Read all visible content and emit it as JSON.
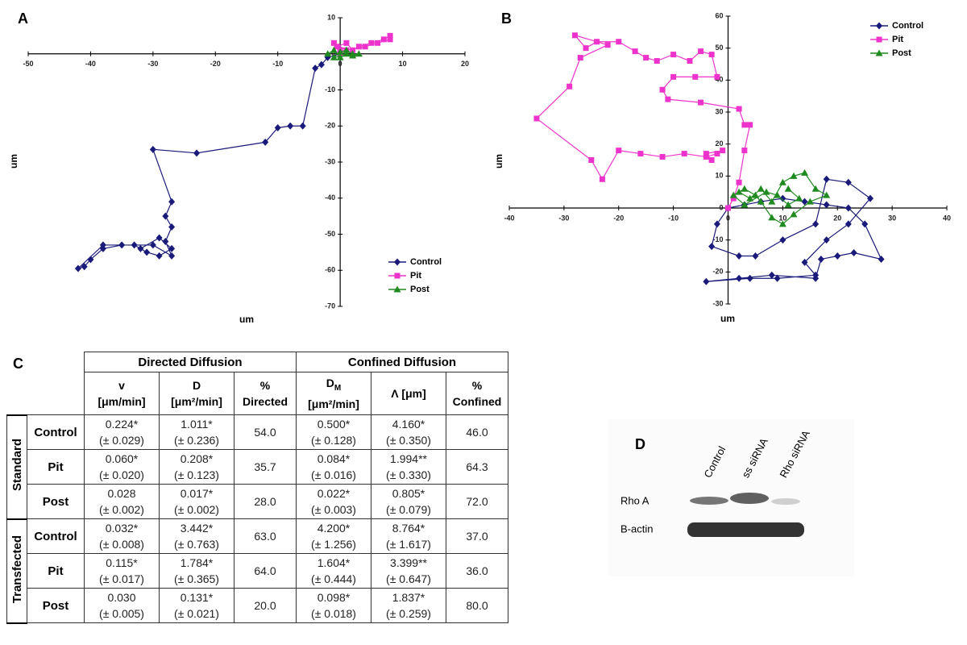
{
  "panels": [
    "A",
    "B",
    "C",
    "D"
  ],
  "chart_data": [
    {
      "type": "line",
      "xlabel": "um",
      "ylabel": "um",
      "legend": "lower right",
      "xlim": [
        -50,
        20
      ],
      "ylim": [
        -70,
        10
      ],
      "xticks": [
        -50,
        -40,
        -30,
        -20,
        -10,
        0,
        10,
        20
      ],
      "yticks": [
        -70,
        -60,
        -50,
        -40,
        -30,
        -20,
        -10,
        0,
        10
      ],
      "series": [
        {
          "name": "Control",
          "color": "#1a1a7a",
          "marker": "diamond",
          "x": [
            0,
            -2,
            -3,
            -4,
            -6,
            -8,
            -10,
            -12,
            -23,
            -30,
            -27,
            -28,
            -27,
            -28,
            -27,
            -30,
            -35,
            -38,
            -40,
            -41,
            -42,
            -38,
            -33,
            -31,
            -29,
            -27,
            -29,
            -32
          ],
          "y": [
            0,
            -1,
            -3,
            -4,
            -20,
            -20,
            -20.5,
            -24.5,
            -27.5,
            -26.5,
            -41,
            -45,
            -48,
            -52,
            -56,
            -53,
            -53,
            -54,
            -57,
            -59,
            -59.5,
            -53,
            -53,
            -55,
            -56,
            -54,
            -51,
            -54
          ]
        },
        {
          "name": "Pit",
          "color": "#ee33cc",
          "marker": "square",
          "x": [
            0,
            -0.5,
            1,
            2,
            3,
            5,
            7,
            8,
            8,
            6,
            4,
            1,
            -1,
            0
          ],
          "y": [
            0,
            2,
            3,
            1,
            2,
            3,
            4,
            5,
            4,
            3,
            2,
            1,
            3,
            1
          ]
        },
        {
          "name": "Post",
          "color": "#1f8a1f",
          "marker": "triangle",
          "x": [
            -2,
            -1,
            0,
            1,
            2,
            3,
            -1,
            0,
            1,
            2
          ],
          "y": [
            0,
            1,
            -1,
            0,
            -0.5,
            0,
            -1,
            0.5,
            1,
            0
          ]
        }
      ]
    },
    {
      "type": "line",
      "xlabel": "um",
      "ylabel": "um",
      "legend": "upper right",
      "xlim": [
        -40,
        40
      ],
      "ylim": [
        -30,
        60
      ],
      "xticks": [
        -40,
        -30,
        -20,
        -10,
        0,
        10,
        20,
        30,
        40
      ],
      "yticks": [
        -30,
        -20,
        -10,
        0,
        10,
        20,
        30,
        40,
        50,
        60
      ],
      "series": [
        {
          "name": "Control",
          "color": "#1a1a7a",
          "marker": "diamond",
          "x": [
            0,
            -2,
            -3,
            2,
            5,
            10,
            16,
            18,
            22,
            26,
            22,
            18,
            14,
            16,
            9,
            4,
            -4,
            2,
            8,
            16,
            17,
            20,
            23,
            28,
            25,
            22,
            18,
            14,
            10,
            6,
            3,
            0
          ],
          "y": [
            0,
            -5,
            -12,
            -15,
            -15,
            -10,
            -5,
            9,
            8,
            3,
            -5,
            -10,
            -17,
            -21,
            -22,
            -22,
            -23,
            -22,
            -21,
            -22,
            -16,
            -15,
            -14,
            -16,
            -5,
            0,
            1,
            2,
            3,
            2,
            1,
            0
          ]
        },
        {
          "name": "Pit",
          "color": "#ee33cc",
          "marker": "square",
          "x": [
            0,
            1,
            2,
            3,
            4,
            3,
            2,
            -5,
            -11,
            -12,
            -10,
            -6,
            -2,
            -3,
            -5,
            -7,
            -10,
            -13,
            -15,
            -17,
            -20,
            -24,
            -26,
            -28,
            -22,
            -27,
            -29,
            -35,
            -25,
            -23,
            -20,
            -16,
            -12,
            -8,
            -4,
            -2,
            -1,
            -4,
            -3
          ],
          "y": [
            0,
            3,
            8,
            18,
            26,
            26,
            31,
            33,
            34,
            37,
            41,
            41,
            41,
            48,
            49,
            46,
            48,
            46,
            47,
            49,
            52,
            52,
            50,
            54,
            51,
            47,
            38,
            28,
            15,
            9,
            18,
            17,
            16,
            17,
            16,
            17,
            18,
            17,
            15
          ]
        },
        {
          "name": "Post",
          "color": "#1f8a1f",
          "marker": "triangle",
          "x": [
            2,
            4,
            6,
            8,
            10,
            12,
            14,
            16,
            18,
            15,
            12,
            10,
            8,
            6,
            5,
            3,
            1,
            3,
            7,
            9,
            11,
            13,
            11
          ],
          "y": [
            5,
            3,
            6,
            2,
            8,
            10,
            11,
            6,
            4,
            2,
            -2,
            -5,
            -3,
            2,
            4,
            6,
            4,
            1,
            5,
            4,
            1,
            3,
            6
          ]
        }
      ]
    }
  ],
  "table": {
    "groups": [
      "Directed Diffusion",
      "Confined Diffusion"
    ],
    "columns": [
      {
        "symbol": "v",
        "unit": "[μm/min]"
      },
      {
        "symbol": "D",
        "unit": "[μm²/min]"
      },
      {
        "symbol": "%",
        "unit": "Directed"
      },
      {
        "symbol": "D",
        "sub": "M",
        "unit": "[μm²/min]"
      },
      {
        "symbol": "Λ [μm]"
      },
      {
        "symbol": "%",
        "unit": "Confined"
      }
    ],
    "sections": [
      {
        "label": "Standard",
        "rows": [
          {
            "label": "Control",
            "cells": [
              [
                "0.224*",
                "(± 0.029)"
              ],
              [
                "1.011*",
                "(± 0.236)"
              ],
              [
                "54.0"
              ],
              [
                "0.500*",
                "(± 0.128)"
              ],
              [
                "4.160*",
                "(± 0.350)"
              ],
              [
                "46.0"
              ]
            ]
          },
          {
            "label": "Pit",
            "cells": [
              [
                "0.060*",
                "(± 0.020)"
              ],
              [
                "0.208*",
                "(± 0.123)"
              ],
              [
                "35.7"
              ],
              [
                "0.084*",
                "(± 0.016)"
              ],
              [
                "1.994**",
                "(± 0.330)"
              ],
              [
                "64.3"
              ]
            ]
          },
          {
            "label": "Post",
            "cells": [
              [
                "0.028",
                "(± 0.002)"
              ],
              [
                "0.017*",
                "(± 0.002)"
              ],
              [
                "28.0"
              ],
              [
                "0.022*",
                "(± 0.003)"
              ],
              [
                "0.805*",
                "(± 0.079)"
              ],
              [
                "72.0"
              ]
            ]
          }
        ]
      },
      {
        "label": "Transfected",
        "rows": [
          {
            "label": "Control",
            "cells": [
              [
                "0.032*",
                "(± 0.008)"
              ],
              [
                "3.442*",
                "(± 0.763)"
              ],
              [
                "63.0"
              ],
              [
                "4.200*",
                "(± 1.256)"
              ],
              [
                "8.764*",
                "(± 1.617)"
              ],
              [
                "37.0"
              ]
            ]
          },
          {
            "label": "Pit",
            "cells": [
              [
                "0.115*",
                "(± 0.017)"
              ],
              [
                "1.784*",
                "(± 0.365)"
              ],
              [
                "64.0"
              ],
              [
                "1.604*",
                "(± 0.444)"
              ],
              [
                "3.399**",
                "(± 0.647)"
              ],
              [
                "36.0"
              ]
            ]
          },
          {
            "label": "Post",
            "cells": [
              [
                "0.030",
                "(± 0.005)"
              ],
              [
                "0.131*",
                "(± 0.021)"
              ],
              [
                "20.0"
              ],
              [
                "0.098*",
                "(± 0.018)"
              ],
              [
                "1.837*",
                "(± 0.259)"
              ],
              [
                "80.0"
              ]
            ]
          }
        ]
      }
    ]
  },
  "blot": {
    "lanes": [
      "Control",
      "ss siRNA",
      "Rho siRNA"
    ],
    "rows": [
      "Rho A",
      "B-actin"
    ]
  }
}
